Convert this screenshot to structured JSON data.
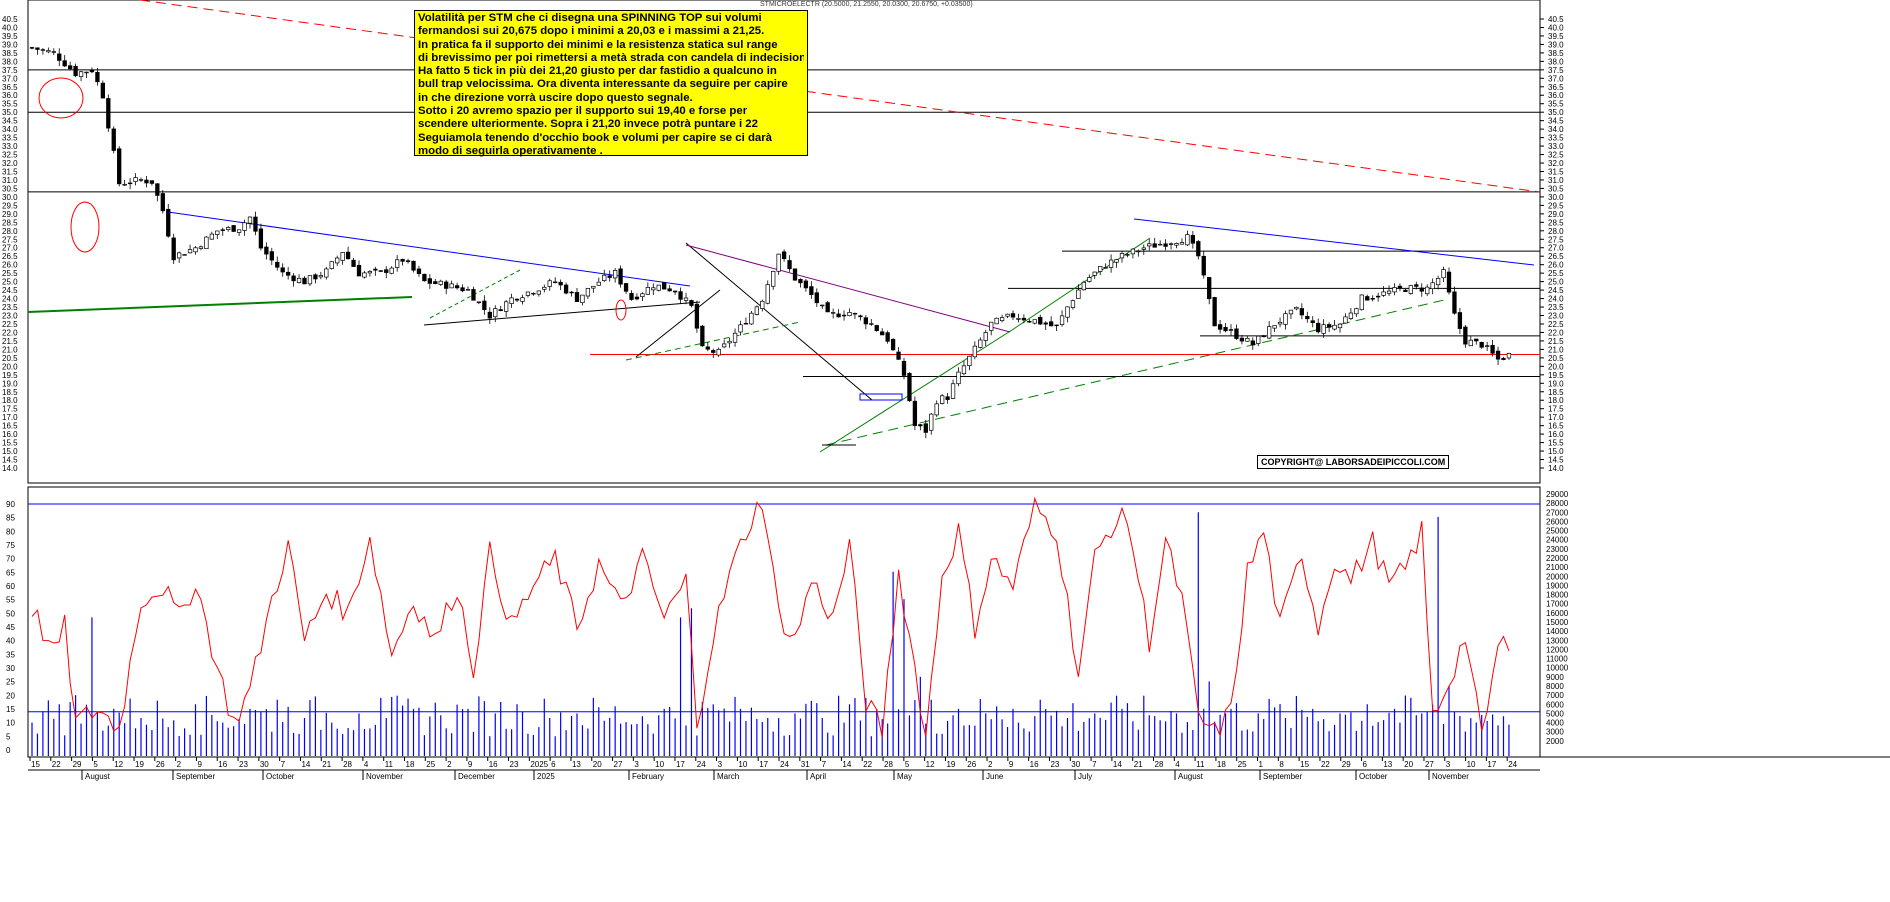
{
  "header": "STMICROELECTR (20.5000, 21.2550, 20.0300, 20.6750, +0.03500)",
  "annotation_lines": [
    "Volatilità per STM che ci disegna una SPINNING TOP sui volumi",
    "fermandosi sui 20,675 dopo i minimi a 20,03 e i massimi a 21,25.",
    "In pratica fa il supporto dei minimi e la resistenza statica sul range",
    "di brevissimo per poi rimettersi a metà strada con candela di indecisione.",
    "Ha fatto 5 tick in più dei 21,20 giusto per dar fastidio a qualcuno in",
    "bull trap velocissima. Ora diventa interessante da seguire per capire",
    "in che direzione vorrà uscire dopo questo segnale.",
    "Sotto i 20 avremo spazio per il supporto sui 19,40 e forse per",
    "scendere ulteriormente. Sopra i 21,20 invece potrà puntare i 22",
    "Seguiamola tenendo d'occhio book e volumi per capire se ci darà",
    "modo di seguirla operativamente ."
  ],
  "copyright": "COPYRIGHT@ LABORSADEIPICCOLI.COM",
  "colors": {
    "price": "#000000",
    "red": "#ff0000",
    "blue": "#0000ff",
    "green": "#008000",
    "annotation_bg": "#ffff00"
  },
  "chart_data": [
    {
      "type": "candlestick",
      "title": "",
      "ylim": [
        14.0,
        40.5
      ],
      "y_ticks": [
        14.0,
        14.5,
        15.0,
        15.5,
        16.0,
        16.5,
        17.0,
        17.5,
        18.0,
        18.5,
        19.0,
        19.5,
        20.0,
        20.5,
        21.0,
        21.5,
        22.0,
        22.5,
        23.0,
        23.5,
        24.0,
        24.5,
        25.0,
        25.5,
        26.0,
        26.5,
        27.0,
        27.5,
        28.0,
        28.5,
        29.0,
        29.5,
        30.0,
        30.5,
        31.0,
        31.5,
        32.0,
        32.5,
        33.0,
        33.5,
        34.0,
        34.5,
        35.0,
        35.5,
        36.0,
        36.5,
        37.0,
        37.5,
        38.0,
        38.5,
        39.0,
        39.5,
        40.0,
        40.5
      ],
      "y_tick_labels": [
        "14.0",
        "14.5",
        "15.0",
        "15.5",
        "16.0",
        "16.5",
        "17.0",
        "17.5",
        "18.0",
        "18.5",
        "19.0",
        "19.5",
        "20.0",
        "20.5",
        "21.0",
        "21.5",
        "22.0",
        "22.5",
        "23.0",
        "23.5",
        "24.0",
        "24.5",
        "25.0",
        "25.5",
        "26.0",
        "26.5",
        "27.0",
        "27.5",
        "28.0",
        "28.5",
        "29.0",
        "29.5",
        "30.0",
        "30.5",
        "31.0",
        "31.5",
        "32.0",
        "32.5",
        "33.0",
        "33.5",
        "34.0",
        "34.5",
        "35.0",
        "35.5",
        "36.0",
        "36.5",
        "37.0",
        "37.5",
        "38.0",
        "38.5",
        "39.0",
        "39.5",
        "40.0",
        "40.5"
      ],
      "close_path": [
        [
          0,
          38.8
        ],
        [
          4,
          38.5
        ],
        [
          8,
          37.3
        ],
        [
          11,
          37.5
        ],
        [
          13,
          36.0
        ],
        [
          16,
          30.8
        ],
        [
          20,
          31.0
        ],
        [
          22,
          30.9
        ],
        [
          24,
          29.2
        ],
        [
          26,
          26.5
        ],
        [
          30,
          27.0
        ],
        [
          34,
          28.0
        ],
        [
          38,
          28.2
        ],
        [
          40,
          28.8
        ],
        [
          42,
          27.0
        ],
        [
          46,
          25.5
        ],
        [
          50,
          25.0
        ],
        [
          54,
          25.6
        ],
        [
          57,
          26.8
        ],
        [
          60,
          25.5
        ],
        [
          64,
          25.5
        ],
        [
          68,
          26.3
        ],
        [
          72,
          25.0
        ],
        [
          76,
          24.8
        ],
        [
          80,
          24.5
        ],
        [
          84,
          23.0
        ],
        [
          88,
          24.0
        ],
        [
          92,
          24.5
        ],
        [
          96,
          25.0
        ],
        [
          100,
          24.0
        ],
        [
          104,
          25.0
        ],
        [
          107,
          25.5
        ],
        [
          110,
          24.0
        ],
        [
          114,
          24.8
        ],
        [
          118,
          24.5
        ],
        [
          121,
          23.5
        ],
        [
          123,
          21.0
        ],
        [
          126,
          20.8
        ],
        [
          130,
          22.3
        ],
        [
          134,
          24.0
        ],
        [
          137,
          26.7
        ],
        [
          140,
          25.2
        ],
        [
          143,
          24.2
        ],
        [
          146,
          23.0
        ],
        [
          150,
          23.2
        ],
        [
          154,
          22.5
        ],
        [
          157,
          21.6
        ],
        [
          160,
          19.5
        ],
        [
          162,
          16.5
        ],
        [
          164,
          16.2
        ],
        [
          166,
          18.0
        ],
        [
          168,
          18.2
        ],
        [
          170,
          19.5
        ],
        [
          173,
          21.0
        ],
        [
          176,
          22.5
        ],
        [
          180,
          23.0
        ],
        [
          184,
          22.7
        ],
        [
          188,
          22.3
        ],
        [
          190,
          23.5
        ],
        [
          193,
          25.0
        ],
        [
          197,
          26.0
        ],
        [
          200,
          26.5
        ],
        [
          204,
          27.0
        ],
        [
          208,
          27.3
        ],
        [
          212,
          27.6
        ],
        [
          214,
          26.5
        ],
        [
          217,
          22.5
        ],
        [
          220,
          22.0
        ],
        [
          224,
          21.3
        ],
        [
          228,
          22.5
        ],
        [
          232,
          23.3
        ],
        [
          236,
          22.2
        ],
        [
          240,
          22.5
        ],
        [
          244,
          24.0
        ],
        [
          248,
          24.3
        ],
        [
          252,
          24.6
        ],
        [
          256,
          24.6
        ],
        [
          259,
          25.5
        ],
        [
          261,
          23.0
        ],
        [
          263,
          21.5
        ],
        [
          266,
          21.3
        ],
        [
          269,
          20.4
        ],
        [
          271,
          20.675
        ]
      ],
      "x_day_labels": [
        "15",
        "22",
        "29",
        "5",
        "12",
        "19",
        "26",
        "2",
        "9",
        "16",
        "23",
        "30",
        "7",
        "14",
        "21",
        "28",
        "4",
        "11",
        "18",
        "25",
        "2",
        "9",
        "16",
        "23",
        "2025",
        "6",
        "13",
        "20",
        "27",
        "3",
        "10",
        "17",
        "24",
        "3",
        "10",
        "17",
        "24",
        "31",
        "7",
        "14",
        "22",
        "28",
        "5",
        "12",
        "19",
        "26",
        "2",
        "9",
        "16",
        "23",
        "30",
        "7",
        "14",
        "21",
        "28",
        "4",
        "11",
        "18",
        "25",
        "1",
        "8",
        "15",
        "22",
        "29",
        "6",
        "13",
        "20",
        "27",
        "3",
        "10",
        "17",
        "24"
      ],
      "x_month_labels": [
        "August",
        "September",
        "October",
        "November",
        "December",
        "2025",
        "February",
        "March",
        "April",
        "May",
        "June",
        "July",
        "August",
        "September",
        "October",
        "November"
      ],
      "horizontal_levels": [
        37.5,
        35.0,
        30.3,
        26.8,
        24.6,
        21.8,
        20.7,
        19.4
      ]
    },
    {
      "type": "bar+line",
      "title": "",
      "left_ylim": [
        0,
        90
      ],
      "left_ticks": [
        0,
        5,
        10,
        15,
        20,
        25,
        30,
        35,
        40,
        45,
        50,
        55,
        60,
        65,
        70,
        75,
        80,
        85,
        90
      ],
      "left_tick_labels": [
        "0",
        "5",
        "10",
        "15",
        "20",
        "25",
        "30",
        "35",
        "40",
        "45",
        "50",
        "55",
        "60",
        "65",
        "70",
        "75",
        "80",
        "85",
        "90"
      ],
      "right_ylim": [
        0,
        29000
      ],
      "right_ticks": [
        2000,
        3000,
        4000,
        5000,
        6000,
        7000,
        8000,
        9000,
        10000,
        11000,
        12000,
        13000,
        14000,
        15000,
        16000,
        17000,
        18000,
        19000,
        20000,
        21000,
        22000,
        23000,
        24000,
        25000,
        26000,
        27000,
        28000,
        29000
      ],
      "right_tick_labels": [
        "2000",
        "3000",
        "4000",
        "5000",
        "6000",
        "7000",
        "8000",
        "9000",
        "10000",
        "11000",
        "12000",
        "13000",
        "14000",
        "15000",
        "16000",
        "17000",
        "18000",
        "19000",
        "20000",
        "21000",
        "22000",
        "23000",
        "24000",
        "25000",
        "26000",
        "27000",
        "28000",
        "29000"
      ],
      "levels": [
        90,
        14
      ],
      "oscillator_path": [
        [
          0,
          52
        ],
        [
          4,
          35
        ],
        [
          6,
          45
        ],
        [
          8,
          10
        ],
        [
          12,
          15
        ],
        [
          16,
          8
        ],
        [
          20,
          55
        ],
        [
          24,
          60
        ],
        [
          27,
          48
        ],
        [
          30,
          62
        ],
        [
          34,
          30
        ],
        [
          37,
          10
        ],
        [
          40,
          22
        ],
        [
          44,
          55
        ],
        [
          47,
          75
        ],
        [
          50,
          40
        ],
        [
          54,
          58
        ],
        [
          58,
          50
        ],
        [
          62,
          78
        ],
        [
          66,
          35
        ],
        [
          70,
          55
        ],
        [
          74,
          40
        ],
        [
          78,
          60
        ],
        [
          81,
          30
        ],
        [
          84,
          72
        ],
        [
          88,
          45
        ],
        [
          92,
          60
        ],
        [
          96,
          70
        ],
        [
          100,
          45
        ],
        [
          104,
          68
        ],
        [
          108,
          52
        ],
        [
          112,
          70
        ],
        [
          116,
          48
        ],
        [
          120,
          62
        ],
        [
          122,
          10
        ],
        [
          125,
          42
        ],
        [
          128,
          64
        ],
        [
          131,
          80
        ],
        [
          134,
          92
        ],
        [
          137,
          50
        ],
        [
          140,
          40
        ],
        [
          143,
          62
        ],
        [
          147,
          48
        ],
        [
          150,
          75
        ],
        [
          153,
          18
        ],
        [
          156,
          7
        ],
        [
          159,
          65
        ],
        [
          162,
          30
        ],
        [
          164,
          5
        ],
        [
          167,
          64
        ],
        [
          170,
          80
        ],
        [
          173,
          45
        ],
        [
          176,
          70
        ],
        [
          180,
          60
        ],
        [
          184,
          89
        ],
        [
          188,
          80
        ],
        [
          192,
          28
        ],
        [
          195,
          70
        ],
        [
          198,
          82
        ],
        [
          201,
          85
        ],
        [
          205,
          40
        ],
        [
          208,
          76
        ],
        [
          211,
          55
        ],
        [
          214,
          12
        ],
        [
          217,
          6
        ],
        [
          220,
          14
        ],
        [
          223,
          65
        ],
        [
          226,
          80
        ],
        [
          229,
          45
        ],
        [
          233,
          72
        ],
        [
          236,
          45
        ],
        [
          239,
          70
        ],
        [
          242,
          62
        ],
        [
          246,
          76
        ],
        [
          249,
          60
        ],
        [
          252,
          66
        ],
        [
          255,
          80
        ],
        [
          257,
          12
        ],
        [
          260,
          25
        ],
        [
          263,
          42
        ],
        [
          266,
          4
        ],
        [
          269,
          37
        ],
        [
          271,
          40
        ]
      ],
      "volume_bars": [
        [
          0,
          4000
        ],
        [
          5,
          6000
        ],
        [
          8,
          7000
        ],
        [
          11,
          15500
        ],
        [
          15,
          5500
        ],
        [
          20,
          4500
        ],
        [
          25,
          3500
        ],
        [
          30,
          6000
        ],
        [
          35,
          4000
        ],
        [
          40,
          5500
        ],
        [
          45,
          6500
        ],
        [
          50,
          4500
        ],
        [
          55,
          4000
        ],
        [
          60,
          5000
        ],
        [
          65,
          4500
        ],
        [
          70,
          5500
        ],
        [
          75,
          4800
        ],
        [
          80,
          5500
        ],
        [
          85,
          5000
        ],
        [
          90,
          5200
        ],
        [
          95,
          4500
        ],
        [
          100,
          5000
        ],
        [
          105,
          4200
        ],
        [
          110,
          3800
        ],
        [
          115,
          4800
        ],
        [
          119,
          15500
        ],
        [
          121,
          16500
        ],
        [
          125,
          6000
        ],
        [
          130,
          5500
        ],
        [
          135,
          4500
        ],
        [
          140,
          5000
        ],
        [
          145,
          4500
        ],
        [
          150,
          6000
        ],
        [
          155,
          5500
        ],
        [
          158,
          20500
        ],
        [
          160,
          17500
        ],
        [
          163,
          9000
        ],
        [
          165,
          6500
        ],
        [
          170,
          5500
        ],
        [
          175,
          5000
        ],
        [
          180,
          5500
        ],
        [
          185,
          6500
        ],
        [
          190,
          4500
        ],
        [
          195,
          5000
        ],
        [
          200,
          5500
        ],
        [
          205,
          4800
        ],
        [
          210,
          5000
        ],
        [
          214,
          27000
        ],
        [
          216,
          8500
        ],
        [
          220,
          5500
        ],
        [
          225,
          5000
        ],
        [
          230,
          4500
        ],
        [
          235,
          5500
        ],
        [
          240,
          5000
        ],
        [
          245,
          6000
        ],
        [
          250,
          5500
        ],
        [
          255,
          5000
        ],
        [
          258,
          26500
        ],
        [
          260,
          8000
        ],
        [
          265,
          4000
        ],
        [
          270,
          9000
        ]
      ]
    }
  ]
}
